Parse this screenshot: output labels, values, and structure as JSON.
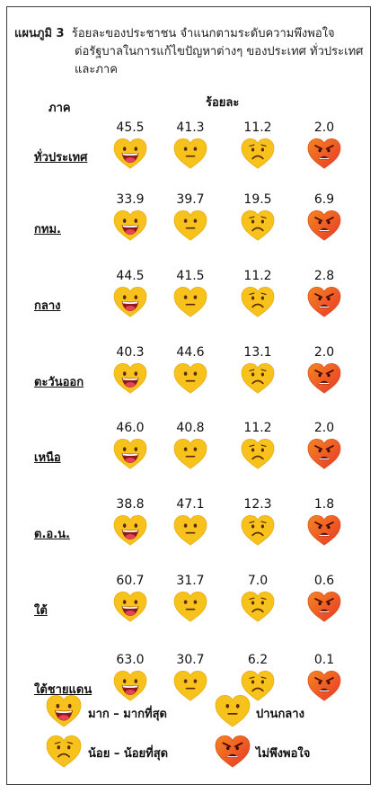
{
  "title": {
    "lead": "แผนภูมิ 3",
    "line1": "ร้อยละของประชาชน  จำแนกตามระดับความพึงพอใจ",
    "line2": "ต่อรัฐบาลในการแก้ไขปัญหาต่างๆ ของประเทศ  ทั่วประเทศ",
    "line3": "และภาค"
  },
  "headers": {
    "region": "ภาค",
    "percent": "ร้อยละ"
  },
  "legend": [
    {
      "key": "very",
      "label": "มาก – มากที่สุด",
      "icon": "happy-heart-icon"
    },
    {
      "key": "medium",
      "label": "ปานกลาง",
      "icon": "neutral-heart-icon"
    },
    {
      "key": "low",
      "label": "น้อย – น้อยที่สุด",
      "icon": "sad-heart-icon"
    },
    {
      "key": "none",
      "label": "ไม่พึงพอใจ",
      "icon": "angry-heart-icon"
    }
  ],
  "colors": {
    "yellow": "#F7C21B",
    "yellow_dark": "#E8A912",
    "orange": "#F5861F",
    "red": "#E8362A",
    "mouth": "#8B1A1A",
    "tongue": "#E8415A",
    "frame": "#3a3a3a"
  },
  "chart_data": {
    "type": "table",
    "unit": "ร้อยละ",
    "categories": [
      "ทั่วประเทศ",
      "กทม.",
      "กลาง",
      "ตะวันออก",
      "เหนือ",
      "ต.อ.น.",
      "ใต้",
      "ใต้ชายแดน"
    ],
    "series": [
      {
        "name": "มาก – มากที่สุด",
        "values": [
          "45.5",
          "33.9",
          "44.5",
          "40.3",
          "46.0",
          "38.8",
          "60.7",
          "63.0"
        ]
      },
      {
        "name": "ปานกลาง",
        "values": [
          "41.3",
          "39.7",
          "41.5",
          "44.6",
          "40.8",
          "47.1",
          "31.7",
          "30.7"
        ]
      },
      {
        "name": "น้อย – น้อยที่สุด",
        "values": [
          "11.2",
          "19.5",
          "11.2",
          "13.1",
          "11.2",
          "12.3",
          "7.0",
          "6.2"
        ]
      },
      {
        "name": "ไม่พึงพอใจ",
        "values": [
          "2.0",
          "6.9",
          "2.8",
          "2.0",
          "2.0",
          "1.8",
          "0.6",
          "0.1"
        ]
      }
    ]
  }
}
